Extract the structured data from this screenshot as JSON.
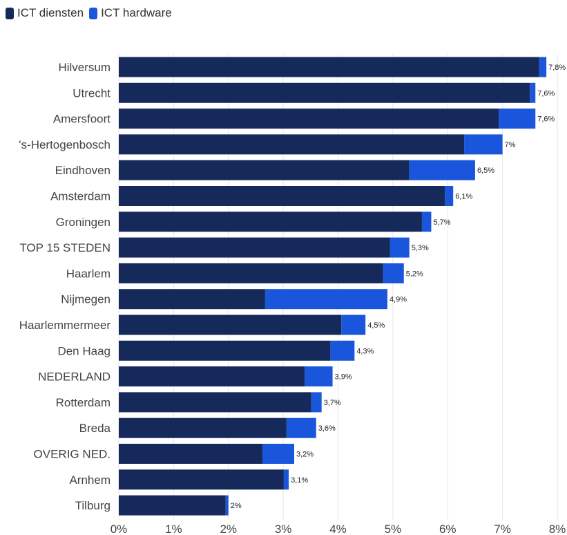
{
  "legend": [
    {
      "label": "ICT diensten",
      "color": "#152a5a"
    },
    {
      "label": "ICT hardware",
      "color": "#1a56db"
    }
  ],
  "chart_data": {
    "type": "bar",
    "orientation": "horizontal",
    "stacked": true,
    "categories": [
      "Hilversum",
      "Utrecht",
      "Amersfoort",
      "'s-Hertogenbosch",
      "Eindhoven",
      "Amsterdam",
      "Groningen",
      "TOP 15 STEDEN",
      "Haarlem",
      "Nijmegen",
      "Haarlemmermeer",
      "Den Haag",
      "NEDERLAND",
      "Rotterdam",
      "Breda",
      "OVERIG NED.",
      "Arnhem",
      "Tilburg"
    ],
    "series": [
      {
        "name": "ICT diensten",
        "color": "#152a5a",
        "values": [
          7.67,
          7.5,
          6.93,
          6.3,
          5.3,
          5.95,
          5.53,
          4.95,
          4.82,
          2.67,
          4.06,
          3.86,
          3.39,
          3.51,
          3.06,
          2.62,
          3.01,
          1.95
        ]
      },
      {
        "name": "ICT hardware",
        "color": "#1a56db",
        "values": [
          0.13,
          0.1,
          0.67,
          0.7,
          1.2,
          0.15,
          0.17,
          0.35,
          0.38,
          2.23,
          0.44,
          0.44,
          0.51,
          0.19,
          0.54,
          0.58,
          0.09,
          0.05
        ]
      }
    ],
    "totals_labels": [
      "7,8%",
      "7,6%",
      "7,6%",
      "7%",
      "6,5%",
      "6,1%",
      "5,7%",
      "5,3%",
      "5,2%",
      "4,9%",
      "4,5%",
      "4,3%",
      "3,9%",
      "3,7%",
      "3,6%",
      "3,2%",
      "3,1%",
      "2%"
    ],
    "xlim": [
      0,
      8
    ],
    "xticks": [
      0,
      1,
      2,
      3,
      4,
      5,
      6,
      7,
      8
    ],
    "xtick_labels": [
      "0%",
      "1%",
      "2%",
      "3%",
      "4%",
      "5%",
      "6%",
      "7%",
      "8%"
    ],
    "grid": true,
    "legend_position": "top-left"
  }
}
